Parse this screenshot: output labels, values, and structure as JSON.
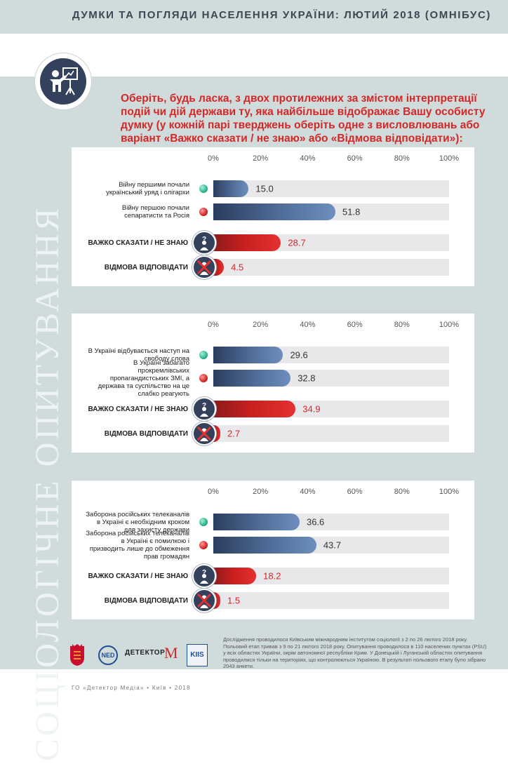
{
  "header": {
    "title": "ДУМКИ ТА ПОГЛЯДИ НАСЕЛЕННЯ УКРАЇНИ: ЛЮТИЙ 2018 (ОМНІБУС)"
  },
  "side_label": "СОЦІОЛОГІЧНЕ ОПИТУВАННЯ",
  "question": "Оберіть, будь ласка, з двох протилежних за змістом інтерпретації подій чи дій держави ту, яка найбільше відображає Вашу особисту думку (у кожній парі тверджень оберіть одне з висловлювань або варіант «Важко сказати / не знаю» або «Відмова відповідати»):",
  "colors": {
    "accent_red": "#d42727",
    "bar_blue": "#506d98",
    "panel_bg": "#d0dcdc",
    "dark_icon": "#33415c"
  },
  "chart_data": [
    {
      "type": "bar",
      "orientation": "horizontal",
      "unit": "%",
      "xlim": [
        0,
        100
      ],
      "ticks": [
        "0%",
        "20%",
        "40%",
        "60%",
        "80%",
        "100%"
      ],
      "categories": [
        "Війну першими почали український уряд і олігархи",
        "Війну першою почали сепаратисти та Росія",
        "ВАЖКО СКАЗАТИ / НЕ ЗНАЮ",
        "ВІДМОВА ВІДПОВІДАТИ"
      ],
      "values": [
        15.0,
        51.8,
        28.7,
        4.5
      ],
      "labels": [
        "15.0",
        "51.8",
        "28.7",
        "4.5"
      ]
    },
    {
      "type": "bar",
      "orientation": "horizontal",
      "unit": "%",
      "xlim": [
        0,
        100
      ],
      "ticks": [
        "0%",
        "20%",
        "40%",
        "60%",
        "80%",
        "100%"
      ],
      "categories": [
        "В Україні відбувається наступ на свободу слова",
        "В Україні забагато прокремлівських пропагандистських ЗМІ, а держава та суспільство на це слабко реагують",
        "ВАЖКО СКАЗАТИ / НЕ ЗНАЮ",
        "ВІДМОВА ВІДПОВІДАТИ"
      ],
      "values": [
        29.6,
        32.8,
        34.9,
        2.7
      ],
      "labels": [
        "29.6",
        "32.8",
        "34.9",
        "2.7"
      ]
    },
    {
      "type": "bar",
      "orientation": "horizontal",
      "unit": "%",
      "xlim": [
        0,
        100
      ],
      "ticks": [
        "0%",
        "20%",
        "40%",
        "60%",
        "80%",
        "100%"
      ],
      "categories": [
        "Заборона російських телеканалів в Україні є необхідним кроком для захисту держави",
        "Заборона російських телеканалів в Україні є помилкою і призводить лише до обмеження прав громадян",
        "ВАЖКО СКАЗАТИ / НЕ ЗНАЮ",
        "ВІДМОВА ВІДПОВІДАТИ"
      ],
      "values": [
        36.6,
        43.7,
        18.2,
        1.5
      ],
      "labels": [
        "36.6",
        "43.7",
        "18.2",
        "1.5"
      ]
    }
  ],
  "footer": {
    "note": "Дослідження проводилося Київським міжнародним інститутом соціології з 2 по 26 лютого 2018 року. Польовий етап тривав з 9 по 21 лютого 2018 року. Опитування проводилося в 110 населених пунктах (PSU) у всіх областях України, окрім автономної республіки Крим. У Донецькій і Луганській областях опитування проводилися тільки на територіях, що контролюються Україною. В результаті польового етапу було зібрано 2043 анкети.",
    "org": "ГО «Детектор Медіа» • Київ • 2018",
    "logos": [
      "denmark-crest",
      "NED",
      "ДЕТЕКТОР МЕДІА",
      "KIIS"
    ],
    "logo_ned": "NED",
    "logo_detector": "ДЕТЕКТОР",
    "logo_m": "M",
    "logo_kiis": "KIIS"
  }
}
